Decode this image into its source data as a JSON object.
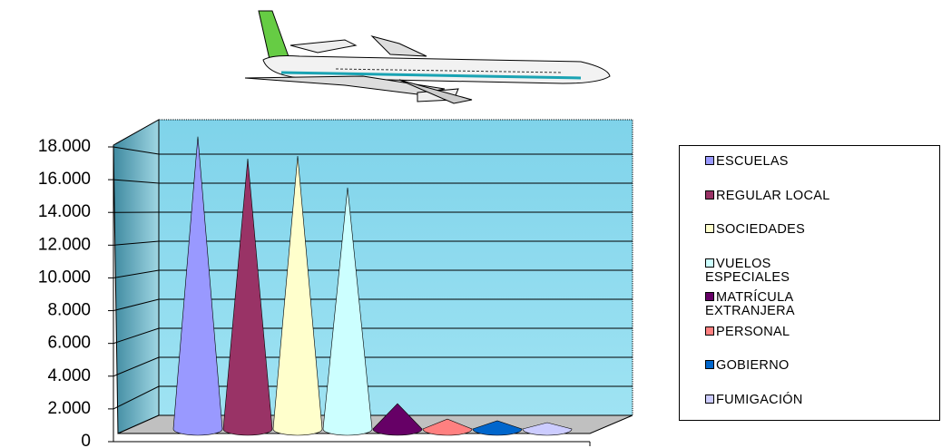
{
  "chart_data": {
    "type": "cone",
    "series": [
      {
        "name": "ESCUELAS",
        "color": "#9999ff",
        "values": [
          18900
        ]
      },
      {
        "name": "REGULAR LOCAL",
        "color": "#993366",
        "values": [
          17470
        ]
      },
      {
        "name": "SOCIEDADES",
        "color": "#ffffcc",
        "values": [
          17650
        ]
      },
      {
        "name": "VUELOS ESPECIALES",
        "color": "#ccffff",
        "values": [
          15600
        ]
      },
      {
        "name": "MATRÍCULA EXTRANJERA",
        "color": "#660066",
        "values": [
          1640
        ]
      },
      {
        "name": "PERSONAL",
        "color": "#ff8080",
        "values": [
          640
        ]
      },
      {
        "name": "GOBIERNO",
        "color": "#0066cc",
        "values": [
          530
        ]
      },
      {
        "name": "FUMIGACIÓN",
        "color": "#ccccff",
        "values": [
          410
        ]
      }
    ],
    "ylim": [
      0,
      18000
    ],
    "yticks": [
      0,
      {
        "value": 2000,
        "label": "2.000"
      },
      {
        "value": 4000,
        "label": "4.000"
      },
      {
        "value": 6000,
        "label": "6.000"
      },
      {
        "value": 8000,
        "label": "8.000"
      },
      {
        "value": 10000,
        "label": "10.000"
      },
      {
        "value": 12000,
        "label": "12.000"
      },
      {
        "value": 14000,
        "label": "14.000"
      },
      {
        "value": 16000,
        "label": "16.000"
      },
      {
        "value": 18000,
        "label": "18.000"
      }
    ],
    "grid": true
  }
}
